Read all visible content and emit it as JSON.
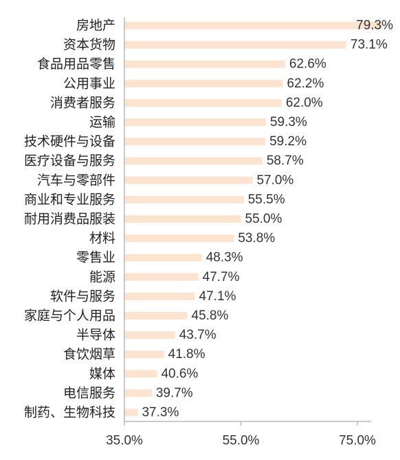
{
  "chart_data": {
    "type": "bar",
    "orientation": "horizontal",
    "categories": [
      "房地产",
      "资本货物",
      "食品用品零售",
      "公用事业",
      "消费者服务",
      "运输",
      "技术硬件与设备",
      "医疗设备与服务",
      "汽车与零部件",
      "商业和专业服务",
      "耐用消费品服装",
      "材料",
      "零售业",
      "能源",
      "软件与服务",
      "家庭与个人用品",
      "半导体",
      "食饮烟草",
      "媒体",
      "电信服务",
      "制药、生物科技"
    ],
    "values": [
      79.3,
      73.1,
      62.6,
      62.2,
      62.0,
      59.3,
      59.2,
      58.7,
      57.0,
      55.5,
      55.0,
      53.8,
      48.3,
      47.7,
      47.1,
      45.8,
      43.7,
      41.8,
      40.6,
      39.7,
      37.3
    ],
    "value_labels": [
      "79.3%",
      "73.1%",
      "62.6%",
      "62.2%",
      "62.0%",
      "59.3%",
      "59.2%",
      "58.7%",
      "57.0%",
      "55.5%",
      "55.0%",
      "53.8%",
      "48.3%",
      "47.7%",
      "47.1%",
      "45.8%",
      "43.7%",
      "41.8%",
      "40.6%",
      "39.7%",
      "37.3%"
    ],
    "xlim": [
      35,
      80
    ],
    "x_ticks": [
      35,
      55,
      75
    ],
    "x_tick_labels": [
      "35.0%",
      "55.0%",
      "75.0%"
    ],
    "bar_color": "#fce4d1",
    "grid": false,
    "legend": "none"
  }
}
